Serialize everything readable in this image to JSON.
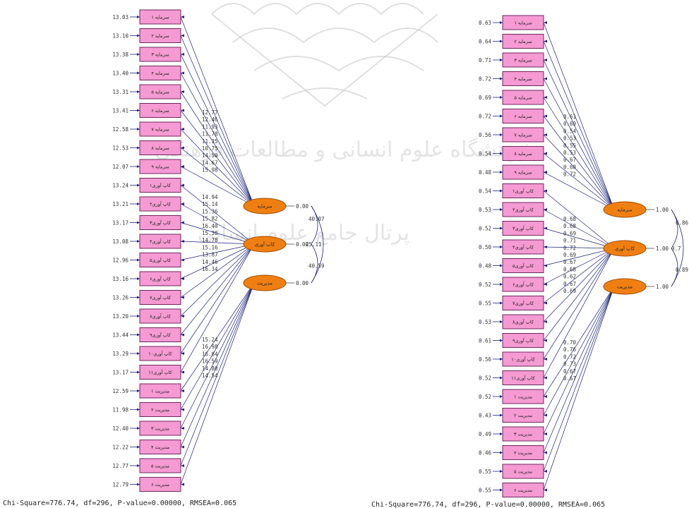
{
  "watermark": {
    "line1": "پژوهشگاه علوم انسانی و مطالعات فرهنگی",
    "line2": "پرتال جامع علوم انسانی"
  },
  "indicators": [
    "سرمایه ۱",
    "سرمایه ۲",
    "سرمایه ۳",
    "سرمایه ۴",
    "سرمایه ۵",
    "سرمایه ۶",
    "سرمایه ۷",
    "سرمایه ۸",
    "سرمایه ۹",
    "کاپ آوری۱",
    "کاپ آوری۲",
    "کاپ آوری۳",
    "کاپ آوری۴",
    "کاپ آوری۵",
    "کاپ آوری۶",
    "کاپ آوری۷",
    "کاپ آوری۸",
    "کاپ آوری۹",
    "کاپ آوری۱۰",
    "کاپ آوری۱۱",
    "مدیریت ۱",
    "مدیریت ۲",
    "مدیریت ۳",
    "مدیریت ۴",
    "مدیریت ۵",
    "مدیریت ۶"
  ],
  "latents": [
    "سرمایه",
    "کاپ آوری",
    "مدیریت"
  ],
  "indicator_factor": [
    0,
    0,
    0,
    0,
    0,
    0,
    0,
    0,
    0,
    1,
    1,
    1,
    1,
    1,
    1,
    1,
    1,
    1,
    1,
    1,
    2,
    2,
    2,
    2,
    2,
    2
  ],
  "left_diagram": {
    "errors": [
      "13.03",
      "13.10",
      "13.38",
      "13.40",
      "13.31",
      "13.41",
      "12.58",
      "12.53",
      "12.07",
      "13.24",
      "13.21",
      "13.17",
      "13.08",
      "12.96",
      "13.16",
      "13.26",
      "13.20",
      "13.44",
      "13.29",
      "13.17",
      "12.59",
      "11.98",
      "12.40",
      "12.22",
      "12.77",
      "12.79"
    ],
    "loadings": [
      "12.77",
      "12.46",
      "11.93",
      "11.78",
      "11.35",
      "10.75",
      "14.50",
      "14.67",
      "15.98",
      "14.94",
      "15.14",
      "15.36",
      "15.82",
      "16.40",
      "15.38",
      "14.78",
      "15.16",
      "13.87",
      "14.46",
      "16.34",
      "15.24",
      "16.98",
      "16.84",
      "16.59",
      "14.80",
      "14.54"
    ],
    "latent_values": [
      "0.00",
      "0.00",
      "0.00"
    ],
    "covariances": [
      "40.07",
      "25.11",
      "40.59"
    ]
  },
  "right_diagram": {
    "errors": [
      "0.63",
      "0.64",
      "0.71",
      "0.72",
      "0.69",
      "0.72",
      "0.56",
      "0.54",
      "0.48",
      "0.54",
      "0.53",
      "0.52",
      "0.50",
      "0.48",
      "0.52",
      "0.55",
      "0.53",
      "0.61",
      "0.56",
      "0.52",
      "0.52",
      "0.43",
      "0.49",
      "0.46",
      "0.55",
      "0.55"
    ],
    "loadings": [
      "0.61",
      "0.60",
      "0.54",
      "0.53",
      "0.55",
      "0.53",
      "0.67",
      "0.68",
      "0.72",
      "0.68",
      "0.68",
      "0.69",
      "0.71",
      "0.72",
      "0.69",
      "0.67",
      "0.68",
      "0.62",
      "0.67",
      "0.69",
      "0.70",
      "0.76",
      "0.72",
      "0.73",
      "0.67",
      "0.67"
    ],
    "latent_values": [
      "1.00",
      "1.00",
      "1.00"
    ],
    "covariances": [
      "0.86",
      "0.7",
      "0.89"
    ]
  },
  "fit_statistics": "Chi-Square=776.74, df=296, P-value=0.00000, RMSEA=0.065"
}
